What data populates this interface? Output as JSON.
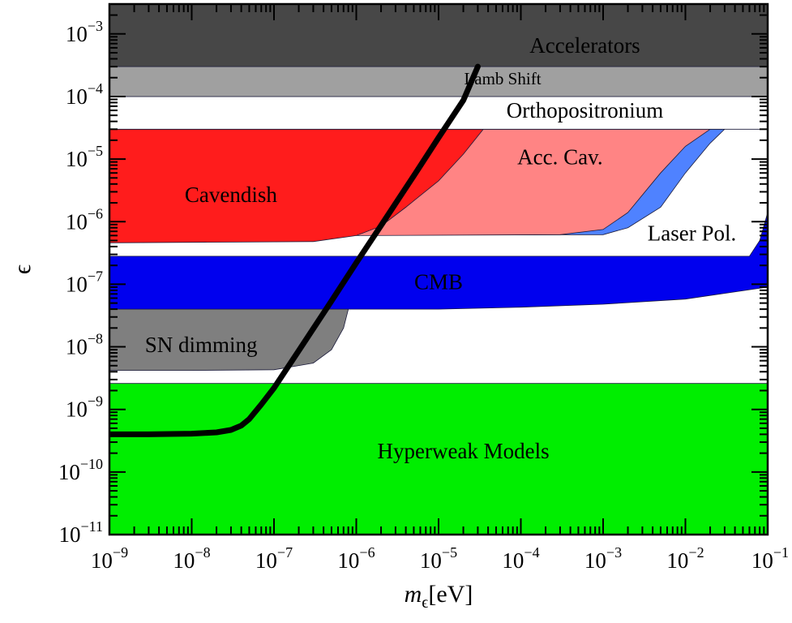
{
  "chart_data": {
    "type": "area",
    "title": "",
    "xlabel": {
      "base": "m",
      "subscript": "ϵ",
      "suffix": "[eV]"
    },
    "ylabel": "ϵ",
    "x_scale": "log",
    "y_scale": "log",
    "xlim": [
      1e-09,
      0.1
    ],
    "ylim": [
      1e-11,
      0.003
    ],
    "x_ticks": [
      {
        "mantissa": "10",
        "exponent": "−9"
      },
      {
        "mantissa": "10",
        "exponent": "−8"
      },
      {
        "mantissa": "10",
        "exponent": "−7"
      },
      {
        "mantissa": "10",
        "exponent": "−6"
      },
      {
        "mantissa": "10",
        "exponent": "−5"
      },
      {
        "mantissa": "10",
        "exponent": "−4"
      },
      {
        "mantissa": "10",
        "exponent": "−3"
      },
      {
        "mantissa": "10",
        "exponent": "−2"
      },
      {
        "mantissa": "10",
        "exponent": "−1"
      }
    ],
    "y_ticks": [
      {
        "mantissa": "10",
        "exponent": "−11"
      },
      {
        "mantissa": "10",
        "exponent": "−10"
      },
      {
        "mantissa": "10",
        "exponent": "−9"
      },
      {
        "mantissa": "10",
        "exponent": "−8"
      },
      {
        "mantissa": "10",
        "exponent": "−7"
      },
      {
        "mantissa": "10",
        "exponent": "−6"
      },
      {
        "mantissa": "10",
        "exponent": "−5"
      },
      {
        "mantissa": "10",
        "exponent": "−4"
      },
      {
        "mantissa": "10",
        "exponent": "−3"
      }
    ],
    "regions": [
      {
        "label": "Hyperweak Models",
        "color": "#00ee00",
        "label_at": [
          2e-05,
          2e-10
        ],
        "upper": [
          [
            1e-09,
            2.6e-09
          ],
          [
            0.1,
            2.6e-09
          ]
        ],
        "lower": [
          [
            1e-09,
            1e-11
          ],
          [
            0.1,
            1e-11
          ]
        ]
      },
      {
        "label": "SN dimming",
        "color": "#7f7f7f",
        "label_at": [
          1.3e-08,
          1e-08
        ],
        "upper": [
          [
            1e-09,
            4e-08
          ],
          [
            8e-07,
            4e-08
          ]
        ],
        "lower": [
          [
            1e-09,
            4.2e-09
          ],
          [
            1e-08,
            4.2e-09
          ],
          [
            1e-07,
            4.3e-09
          ],
          [
            3e-07,
            5.5e-09
          ],
          [
            5e-07,
            9e-09
          ],
          [
            7e-07,
            2e-08
          ],
          [
            8e-07,
            4e-08
          ]
        ]
      },
      {
        "label": "CMB",
        "color": "#0000ee",
        "label_at": [
          1e-05,
          1e-07
        ],
        "upper": [
          [
            1e-09,
            2.8e-07
          ],
          [
            0.06,
            2.8e-07
          ],
          [
            0.08,
            5e-07
          ],
          [
            0.1,
            1.4e-06
          ]
        ],
        "lower": [
          [
            1e-09,
            4e-08
          ],
          [
            1e-05,
            4e-08
          ],
          [
            0.0001,
            4.3e-08
          ],
          [
            0.001,
            4.8e-08
          ],
          [
            0.01,
            5.8e-08
          ],
          [
            0.1,
            9e-08
          ]
        ]
      },
      {
        "label": "Laser Pol.",
        "color": "#4f82ff",
        "label_at": [
          0.012,
          6e-07
        ],
        "upper": [
          [
            1e-09,
            3e-05
          ],
          [
            0.03,
            3e-05
          ],
          [
            0.02,
            1.8e-05
          ],
          [
            0.01,
            6e-06
          ],
          [
            0.005,
            1.7e-06
          ],
          [
            0.002,
            8e-07
          ],
          [
            0.001,
            6.2e-07
          ],
          [
            1e-09,
            6e-07
          ]
        ],
        "lower": []
      },
      {
        "label": "Acc. Cav.",
        "color": "#ff8484",
        "label_at": [
          0.0003,
          1e-05
        ],
        "upper": [
          [
            1e-09,
            3e-05
          ],
          [
            0.02,
            3e-05
          ],
          [
            0.01,
            1.6e-05
          ],
          [
            0.005,
            6e-06
          ],
          [
            0.002,
            1.4e-06
          ],
          [
            0.001,
            7.5e-07
          ],
          [
            0.0003,
            6.2e-07
          ],
          [
            1e-06,
            6e-07
          ]
        ],
        "lower": []
      },
      {
        "label": "Cavendish",
        "color": "#ff1c1c",
        "label_at": [
          3e-08,
          2.5e-06
        ],
        "upper": [
          [
            1e-09,
            3e-05
          ],
          [
            3.5e-05,
            3e-05
          ],
          [
            2e-05,
            1.2e-05
          ],
          [
            1e-05,
            4.5e-06
          ],
          [
            4e-06,
            1.7e-06
          ],
          [
            2e-06,
            8.5e-07
          ],
          [
            1e-06,
            6e-07
          ],
          [
            3e-07,
            4.8e-07
          ],
          [
            1e-09,
            4.6e-07
          ]
        ],
        "lower": []
      },
      {
        "label": "Orthopositronium",
        "color": "#ffffff",
        "label_at": [
          0.0006,
          5.5e-05
        ],
        "upper": [
          [
            1e-09,
            0.0001
          ],
          [
            0.1,
            0.0001
          ]
        ],
        "lower": [
          [
            1e-09,
            3e-05
          ],
          [
            0.1,
            3e-05
          ]
        ]
      },
      {
        "label": "Lamb Shift",
        "color": "#a0a0a0",
        "label_at": [
          6e-05,
          0.00018
        ],
        "upper": [
          [
            1e-09,
            0.0003
          ],
          [
            0.1,
            0.0003
          ]
        ],
        "lower": [
          [
            1e-09,
            0.0001
          ],
          [
            0.1,
            0.0001
          ]
        ]
      },
      {
        "label": "Accelerators",
        "color": "#474747",
        "label_at": [
          0.0006,
          0.0006
        ],
        "upper": [
          [
            1e-09,
            0.003
          ],
          [
            0.1,
            0.003
          ]
        ],
        "lower": [
          [
            1e-09,
            0.0003
          ],
          [
            0.1,
            0.0003
          ]
        ]
      }
    ],
    "series": [
      {
        "name": "",
        "color": "#000000",
        "x": [
          1e-09,
          3e-09,
          1e-08,
          2e-08,
          3e-08,
          4e-08,
          5e-08,
          7e-08,
          1e-07,
          2e-07,
          5e-07,
          1e-06,
          2e-06,
          5e-06,
          1e-05,
          2e-05,
          3e-05
        ],
        "y": [
          4e-10,
          4e-10,
          4.1e-10,
          4.3e-10,
          4.7e-10,
          5.5e-10,
          7e-10,
          1.2e-09,
          2.2e-09,
          8.7e-09,
          5.4e-08,
          2.2e-07,
          8.7e-07,
          5.4e-06,
          2.2e-05,
          8.7e-05,
          0.0003
        ]
      }
    ]
  }
}
